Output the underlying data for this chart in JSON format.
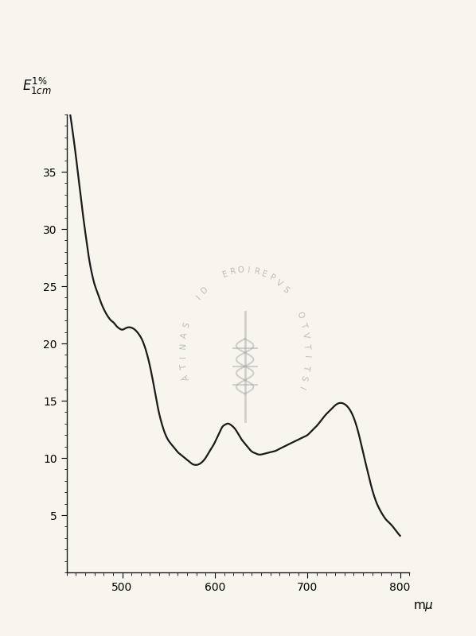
{
  "background_color": "#f8f5ee",
  "line_color": "#1a1a1a",
  "line_width": 1.6,
  "xlim": [
    440,
    810
  ],
  "ylim": [
    0,
    40
  ],
  "xticks": [
    500,
    600,
    700,
    800
  ],
  "yticks": [
    5,
    10,
    15,
    20,
    25,
    30,
    35
  ],
  "x": [
    440,
    443,
    446,
    449,
    452,
    455,
    458,
    461,
    464,
    467,
    470,
    473,
    476,
    479,
    482,
    485,
    488,
    491,
    494,
    497,
    500,
    503,
    506,
    509,
    512,
    515,
    518,
    521,
    524,
    527,
    530,
    533,
    536,
    539,
    542,
    545,
    548,
    551,
    554,
    557,
    560,
    563,
    566,
    569,
    572,
    575,
    578,
    581,
    584,
    587,
    590,
    593,
    596,
    599,
    602,
    605,
    608,
    611,
    614,
    617,
    620,
    623,
    626,
    629,
    632,
    635,
    638,
    641,
    644,
    647,
    650,
    655,
    660,
    665,
    670,
    675,
    680,
    685,
    690,
    695,
    700,
    705,
    710,
    715,
    720,
    725,
    730,
    735,
    740,
    745,
    750,
    755,
    760,
    765,
    770,
    775,
    780,
    785,
    790,
    795,
    800
  ],
  "y": [
    42.0,
    40.5,
    38.8,
    37.0,
    35.0,
    33.0,
    31.0,
    29.2,
    27.5,
    26.2,
    25.2,
    24.5,
    23.8,
    23.2,
    22.7,
    22.3,
    22.0,
    21.8,
    21.5,
    21.3,
    21.2,
    21.3,
    21.4,
    21.4,
    21.3,
    21.1,
    20.8,
    20.4,
    19.8,
    19.0,
    18.0,
    16.8,
    15.5,
    14.2,
    13.2,
    12.4,
    11.8,
    11.4,
    11.1,
    10.8,
    10.5,
    10.3,
    10.1,
    9.9,
    9.7,
    9.5,
    9.4,
    9.4,
    9.5,
    9.7,
    10.0,
    10.4,
    10.8,
    11.2,
    11.7,
    12.2,
    12.7,
    12.9,
    13.0,
    12.9,
    12.7,
    12.4,
    12.0,
    11.6,
    11.3,
    11.0,
    10.7,
    10.5,
    10.4,
    10.3,
    10.3,
    10.4,
    10.5,
    10.6,
    10.8,
    11.0,
    11.2,
    11.4,
    11.6,
    11.8,
    12.0,
    12.4,
    12.8,
    13.3,
    13.8,
    14.2,
    14.6,
    14.8,
    14.7,
    14.3,
    13.5,
    12.2,
    10.5,
    8.8,
    7.2,
    6.0,
    5.2,
    4.6,
    4.2,
    3.7,
    3.2
  ]
}
